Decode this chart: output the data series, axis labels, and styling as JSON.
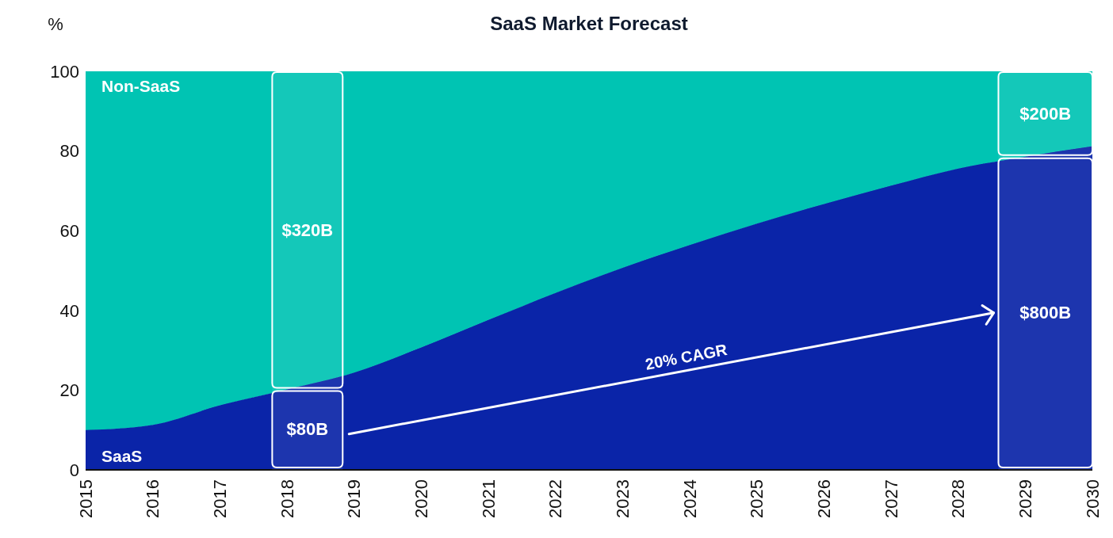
{
  "chart_data": {
    "type": "area",
    "stacked": true,
    "title": "SaaS Market Forecast",
    "ylabel": "%",
    "x": [
      2015,
      2016,
      2017,
      2018,
      2019,
      2020,
      2021,
      2022,
      2023,
      2024,
      2025,
      2026,
      2027,
      2028,
      2029,
      2030
    ],
    "series": [
      {
        "name": "SaaS",
        "color": "#0a24a8",
        "values": [
          10,
          11.3,
          16.2,
          20.2,
          24.4,
          30.7,
          37.6,
          44.4,
          50.7,
          56.4,
          61.8,
          66.7,
          71.3,
          75.6,
          78.6,
          81.2
        ]
      },
      {
        "name": "Non-SaaS",
        "color": "#00c4b3",
        "values": [
          90,
          88.7,
          83.8,
          79.8,
          75.6,
          69.3,
          62.4,
          55.6,
          49.3,
          43.6,
          38.2,
          33.3,
          28.7,
          24.4,
          21.4,
          18.8
        ]
      }
    ],
    "xlim": [
      2015,
      2030
    ],
    "xticks": [
      2015,
      2016,
      2017,
      2018,
      2019,
      2020,
      2021,
      2022,
      2023,
      2024,
      2025,
      2026,
      2027,
      2028,
      2029,
      2030
    ],
    "ylim": [
      0,
      100
    ],
    "yticks": [
      0,
      20,
      40,
      60,
      80,
      100
    ],
    "legend": false,
    "grid": false,
    "bands": [
      {
        "axis": "x",
        "from": 2017.78,
        "to": 2018.83,
        "color": "#ffffff"
      },
      {
        "axis": "x",
        "from": 2028.6,
        "to": 2030,
        "color": "#ffffff"
      }
    ],
    "annotations": [
      "$320B",
      "$80B",
      "$200B",
      "$800B",
      "20% CAGR"
    ]
  }
}
